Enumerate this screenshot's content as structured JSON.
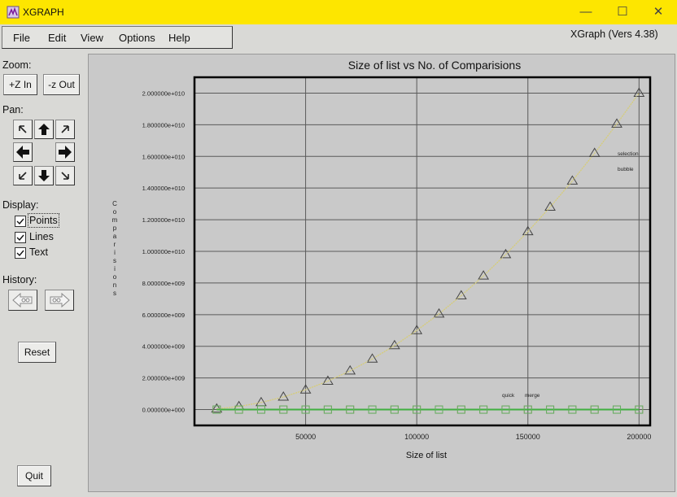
{
  "window": {
    "title": "XGRAPH",
    "minimize": "—",
    "maximize": "☐",
    "close": "✕"
  },
  "menu": [
    "File",
    "Edit",
    "View",
    "Options",
    "Help"
  ],
  "version": "XGraph (Vers 4.38)",
  "sidebar": {
    "zoom_label": "Zoom:",
    "zoom_in": "+Z In",
    "zoom_out": "-z Out",
    "pan_label": "Pan:",
    "pan_icons": [
      "arrow-up-left-icon",
      "arrow-up-icon",
      "arrow-up-right-icon",
      "arrow-left-icon",
      "arrow-right-icon",
      "arrow-down-left-icon",
      "arrow-down-icon",
      "arrow-down-right-icon"
    ],
    "display_label": "Display:",
    "display_options": [
      {
        "label": "Points",
        "checked": true
      },
      {
        "label": "Lines",
        "checked": true
      },
      {
        "label": "Text",
        "checked": true
      }
    ],
    "history_label": "History:",
    "reset": "Reset",
    "quit": "Quit"
  },
  "chart_data": {
    "type": "line",
    "title": "Size of list vs No. of Comparisions",
    "xlabel": "Size of list",
    "ylabel": "Comparisions",
    "xlim": [
      0,
      205000
    ],
    "ylim": [
      -1000000000,
      21000000000
    ],
    "x_ticks": [
      50000,
      100000,
      150000,
      200000
    ],
    "x_tick_labels": [
      "50000",
      "100000",
      "150000",
      "200000"
    ],
    "y_ticks": [
      0,
      2000000000,
      4000000000,
      6000000000,
      8000000000,
      10000000000,
      12000000000,
      14000000000,
      16000000000,
      18000000000,
      20000000000
    ],
    "y_tick_labels": [
      "0.000000e+000",
      "2.000000e+009",
      "4.000000e+009",
      "6.000000e+009",
      "8.000000e+009",
      "1.000000e+010",
      "1.200000e+010",
      "1.400000e+010",
      "1.600000e+010",
      "1.800000e+010",
      "2.000000e+010"
    ],
    "grid": true,
    "x": [
      10000,
      20000,
      30000,
      40000,
      50000,
      60000,
      70000,
      80000,
      90000,
      100000,
      110000,
      120000,
      130000,
      140000,
      150000,
      160000,
      170000,
      180000,
      190000,
      200000
    ],
    "series": [
      {
        "name": "selection",
        "color": "#e0d060",
        "marker": "triangle",
        "values": [
          50000000,
          200000000,
          450000000,
          800000000,
          1250000000,
          1800000000,
          2450000000,
          3200000000,
          4050000000,
          5000000000,
          6050000000,
          7200000000,
          8450000000,
          9800000000,
          11250000000,
          12800000000,
          14450000000,
          16200000000,
          18050000000,
          20000000000
        ]
      },
      {
        "name": "bubble",
        "color": "#c8c8a0",
        "marker": "triangle",
        "values": [
          50000000,
          200000000,
          450000000,
          800000000,
          1250000000,
          1800000000,
          2450000000,
          3200000000,
          4050000000,
          5000000000,
          6050000000,
          7200000000,
          8450000000,
          9800000000,
          11250000000,
          12800000000,
          14450000000,
          16200000000,
          18050000000,
          20000000000
        ]
      },
      {
        "name": "quick",
        "color": "#e08080",
        "marker": "square",
        "values": [
          0,
          0,
          0,
          0,
          0,
          0,
          0,
          0,
          0,
          0,
          0,
          0,
          0,
          0,
          0,
          0,
          0,
          0,
          0,
          0
        ]
      },
      {
        "name": "merge",
        "color": "#40b040",
        "marker": "square",
        "values": [
          0,
          0,
          0,
          0,
          0,
          0,
          0,
          0,
          0,
          0,
          0,
          0,
          0,
          0,
          0,
          0,
          0,
          0,
          0,
          0
        ]
      }
    ]
  }
}
